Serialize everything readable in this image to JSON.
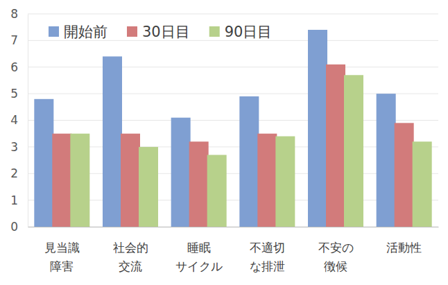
{
  "chart_data": {
    "type": "bar",
    "categories": [
      "見当識\n障害",
      "社会的\n交流",
      "睡眠\nサイクル",
      "不適切\nな排泄",
      "不安の\n徴候",
      "活動性"
    ],
    "series": [
      {
        "name": "開始前",
        "color": "#7f9fd2",
        "values": [
          4.8,
          6.4,
          4.1,
          4.9,
          7.4,
          5.0
        ]
      },
      {
        "name": "30日目",
        "color": "#d27b7b",
        "values": [
          3.5,
          3.5,
          3.2,
          3.5,
          6.1,
          3.9
        ]
      },
      {
        "name": "90日目",
        "color": "#b7d18b",
        "values": [
          3.5,
          3.0,
          2.7,
          3.4,
          5.7,
          3.2
        ]
      }
    ],
    "ylim": [
      0,
      8
    ],
    "yticks": [
      0,
      1,
      2,
      3,
      4,
      5,
      6,
      7,
      8
    ],
    "grid": true,
    "legend": "upper left"
  }
}
